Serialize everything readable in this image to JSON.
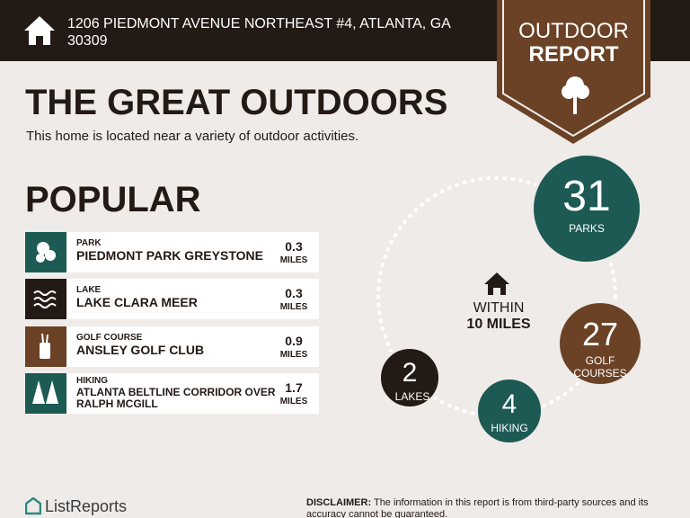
{
  "header": {
    "address": "1206 PIEDMONT AVENUE NORTHEAST #4, ATLANTA, GA 30309"
  },
  "badge": {
    "line1": "OUTDOOR",
    "line2": "REPORT"
  },
  "title": "THE GREAT OUTDOORS",
  "subtitle": "This home is located near a variety of outdoor activities.",
  "popular": {
    "heading": "POPULAR",
    "items": [
      {
        "category": "PARK",
        "name": "PIEDMONT PARK GREYSTONE",
        "distance": 0.3,
        "unit": "MILES"
      },
      {
        "category": "LAKE",
        "name": "LAKE CLARA MEER",
        "distance": 0.3,
        "unit": "MILES"
      },
      {
        "category": "GOLF COURSE",
        "name": "ANSLEY GOLF CLUB",
        "distance": 0.9,
        "unit": "MILES"
      },
      {
        "category": "HIKING",
        "name": "ATLANTA BELTLINE CORRIDOR OVER RALPH MCGILL",
        "distance": 1.7,
        "unit": "MILES"
      }
    ]
  },
  "center": {
    "line1": "WITHIN",
    "line2": "10 MILES"
  },
  "stats": [
    {
      "value": 31,
      "label": "PARKS"
    },
    {
      "value": 27,
      "label": "GOLF COURSES"
    },
    {
      "value": 2,
      "label": "LAKES"
    },
    {
      "value": 4,
      "label": "HIKING"
    }
  ],
  "footer": {
    "logo": "ListReports",
    "disclaimer_label": "DISCLAIMER:",
    "disclaimer": "The information in this report is from third-party sources and its accuracy cannot be guaranteed."
  }
}
